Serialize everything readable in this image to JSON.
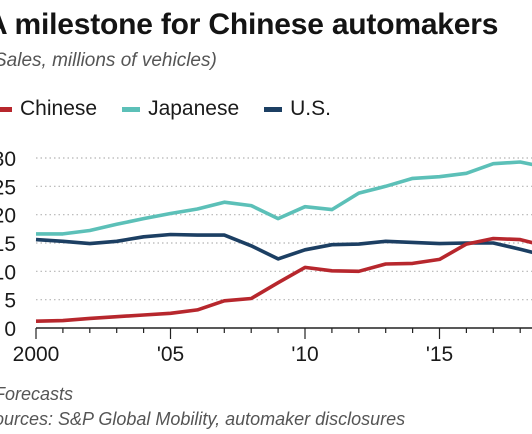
{
  "chart_data": {
    "type": "line",
    "title": "A milestone for Chinese automakers",
    "subtitle": "Sales, millions of vehicles)",
    "ylim": [
      0,
      30
    ],
    "yticks": [
      "30",
      "25",
      "20",
      "15",
      "10",
      "5",
      "0"
    ],
    "ytick_values": [
      30,
      25,
      20,
      15,
      10,
      5,
      0
    ],
    "xlim": [
      2000,
      2018.5
    ],
    "xticks": [
      {
        "value": 2000,
        "label": "2000"
      },
      {
        "value": 2005,
        "label": "'05"
      },
      {
        "value": 2010,
        "label": "'10"
      },
      {
        "value": 2015,
        "label": "'15"
      }
    ],
    "grid": "horizontal dotted",
    "legend_position": "top",
    "x": [
      2000,
      2001,
      2002,
      2003,
      2004,
      2005,
      2006,
      2007,
      2008,
      2009,
      2010,
      2011,
      2012,
      2013,
      2014,
      2015,
      2016,
      2017,
      2018,
      2018.5
    ],
    "series": [
      {
        "name": "Chinese",
        "color": "#b7272d",
        "values": [
          1.2,
          1.3,
          1.7,
          2.0,
          2.3,
          2.6,
          3.2,
          4.8,
          5.2,
          8.0,
          10.7,
          10.1,
          10.0,
          11.3,
          11.4,
          12.1,
          14.8,
          15.8,
          15.6,
          15.0
        ]
      },
      {
        "name": "Japanese",
        "color": "#5cc0b8",
        "values": [
          16.6,
          16.6,
          17.2,
          18.3,
          19.3,
          20.2,
          21.0,
          22.2,
          21.6,
          19.3,
          21.4,
          20.9,
          23.8,
          25.0,
          26.4,
          26.7,
          27.3,
          29.0,
          29.3,
          28.8
        ]
      },
      {
        "name": "U.S.",
        "color": "#1c3f63",
        "values": [
          15.6,
          15.3,
          14.9,
          15.3,
          16.1,
          16.5,
          16.4,
          16.4,
          14.5,
          12.2,
          13.8,
          14.7,
          14.8,
          15.3,
          15.1,
          14.9,
          15.0,
          15.0,
          13.9,
          13.3
        ]
      }
    ]
  },
  "footnotes": {
    "forecast": "Forecasts",
    "sources": "ources: S&P Global Mobility, automaker disclosures"
  }
}
